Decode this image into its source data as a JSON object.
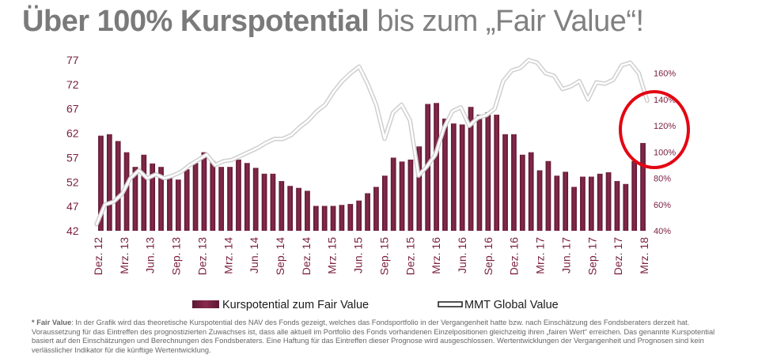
{
  "title": {
    "bold": "Über 100% Kurspotential",
    "rest": " bis zum „Fair Value“!"
  },
  "chart_data": {
    "type": "bar+line",
    "left_axis": {
      "ticks": [
        "77",
        "72",
        "67",
        "62",
        "57",
        "52",
        "47",
        "42"
      ],
      "ylim": [
        42,
        77
      ]
    },
    "right_axis": {
      "ticks": [
        "160%",
        "140%",
        "120%",
        "100%",
        "80%",
        "60%",
        "40%"
      ],
      "ylim": [
        40,
        170
      ]
    },
    "x_tick_labels": [
      "Dez. 12",
      "Mrz. 13",
      "Jun. 13",
      "Sep. 13",
      "Dez. 13",
      "Mrz. 14",
      "Jun. 14",
      "Sep. 14",
      "Dez. 14",
      "Mrz. 15",
      "Jun. 15",
      "Sep. 15",
      "Dez. 15",
      "Mrz. 16",
      "Jun. 16",
      "Sep. 16",
      "Dez. 16",
      "Mrz. 17",
      "Jun. 17",
      "Sep. 17",
      "Dez. 17",
      "Mrz. 18"
    ],
    "series": [
      {
        "name": "Kurspotential zum Fair Value",
        "type": "bar",
        "axis": "left",
        "color": "#7b2042",
        "values": [
          61.5,
          61.8,
          60.4,
          58.1,
          55.1,
          57.6,
          55.8,
          55.1,
          53.4,
          52.5,
          54.6,
          55.9,
          58.1,
          56.3,
          55.1,
          55.1,
          56.6,
          55.9,
          54.9,
          53.7,
          53.7,
          52.2,
          51.2,
          50.8,
          50.2,
          47.1,
          47.1,
          47.1,
          47.3,
          47.5,
          48.2,
          49.7,
          51.0,
          53.3,
          57.0,
          56.2,
          56.6,
          59.3,
          68.0,
          68.2,
          65.0,
          64.0,
          63.8,
          67.4,
          65.8,
          66.3,
          65.8,
          61.8,
          61.8,
          57.6,
          58.1,
          54.4,
          56.3,
          53.3,
          54.1,
          51.0,
          53.1,
          53.1,
          53.7,
          54.0,
          52.2,
          51.6,
          56.3,
          60.0
        ]
      },
      {
        "name": "MMT Global Value",
        "type": "line",
        "axis": "right",
        "color": "#ffffff",
        "values": [
          45,
          60,
          62,
          68,
          80,
          86,
          80,
          83,
          80,
          82,
          85,
          90,
          94,
          98,
          90,
          93,
          94,
          97,
          100,
          103,
          107,
          110,
          110,
          113,
          119,
          124,
          131,
          136,
          146,
          154,
          160,
          165,
          152,
          136,
          110,
          130,
          136,
          124,
          82,
          89,
          98,
          118,
          131,
          134,
          120,
          126,
          128,
          133,
          154,
          162,
          164,
          170,
          168,
          160,
          158,
          148,
          150,
          154,
          140,
          153,
          152,
          155,
          166,
          168,
          160,
          139
        ]
      }
    ],
    "legend": "bottom"
  },
  "legend": {
    "bar_label": "Kurspotential zum Fair Value",
    "line_label": "MMT Global Value"
  },
  "footnote": {
    "label": "* Fair Value",
    "text": ": In der Grafik wird das theoretische Kurspotential des NAV des Fonds gezeigt, welches das Fondsportfolio in der Vergangenheit hatte bzw. nach Einschätzung des Fondsberaters derzeit hat. Voraussetzung für das Eintreffen des prognostizierten Zuwachses ist, dass alle aktuell im Portfolio des Fonds vorhandenen Einzelpositionen gleichzeitig ihren „fairen Wert“ erreichen. Das genannte Kurspotential basiert auf den Einschätzungen und Berechnungen des Fondsberaters. Eine Haftung für das Eintreffen dieser Prognose wird ausgeschlossen. Wertentwicklungen der Vergangenheit und Prognosen sind kein verlässlicher Indikator für die künftige Wertentwicklung."
  },
  "colors": {
    "title": "#808080",
    "axis_text": "#7b2042",
    "bar": "#7b2042",
    "line": "#ffffff",
    "line_shadow": "#cfcfcf",
    "highlight_circle": "#e30613"
  }
}
